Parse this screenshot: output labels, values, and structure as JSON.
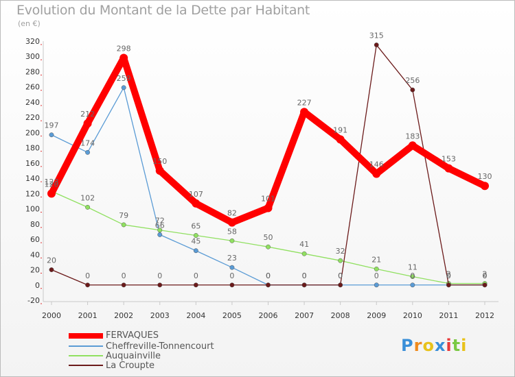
{
  "title": "Evolution du Montant de la Dette par Habitant",
  "unit": "(en €)",
  "logo_text": "Proxiti",
  "chart_data": {
    "type": "line",
    "x": [
      "2000",
      "2001",
      "2002",
      "2003",
      "2004",
      "2005",
      "2006",
      "2007",
      "2008",
      "2009",
      "2010",
      "2011",
      "2012"
    ],
    "ylim": [
      -20,
      320
    ],
    "yticks": [
      -20,
      0,
      20,
      40,
      60,
      80,
      100,
      120,
      140,
      160,
      180,
      200,
      220,
      240,
      260,
      280,
      300,
      320
    ],
    "grid": false,
    "legend_position": "bottom-left",
    "series": [
      {
        "name": "FERVAQUES",
        "color": "#ff0000",
        "values": [
          120,
          212,
          298,
          150,
          107,
          82,
          101,
          227,
          191,
          146,
          183,
          153,
          130
        ],
        "labels": [
          "120",
          "212",
          "298",
          "150",
          "107",
          "82",
          "101",
          "227",
          "191",
          "146",
          "183",
          "153",
          "130"
        ]
      },
      {
        "name": "Cheffreville-Tonnencourt",
        "color": "#5a9bd5",
        "values": [
          197,
          174,
          259,
          66,
          45,
          23,
          0,
          0,
          0,
          0,
          0,
          0,
          0
        ],
        "labels": [
          "197",
          "174",
          "259",
          "66",
          "45",
          "23",
          "0",
          "0",
          "0",
          "0",
          "0",
          "0",
          "0"
        ]
      },
      {
        "name": "Auquainville",
        "color": "#90e060",
        "values": [
          123,
          102,
          79,
          72,
          65,
          58,
          50,
          41,
          32,
          21,
          11,
          2,
          2
        ],
        "labels": [
          "123",
          "102",
          "79",
          "72",
          "65",
          "58",
          "50",
          "41",
          "32",
          "21",
          "11",
          "2",
          "2"
        ]
      },
      {
        "name": "La Croupte",
        "color": "#6b1a1a",
        "values": [
          20,
          0,
          0,
          0,
          0,
          0,
          0,
          0,
          0,
          315,
          256,
          0,
          0
        ],
        "labels": [
          "20",
          "0",
          "0",
          "0",
          "0",
          "0",
          "0",
          "0",
          "0",
          "315",
          "256",
          "0",
          "0"
        ]
      }
    ]
  }
}
